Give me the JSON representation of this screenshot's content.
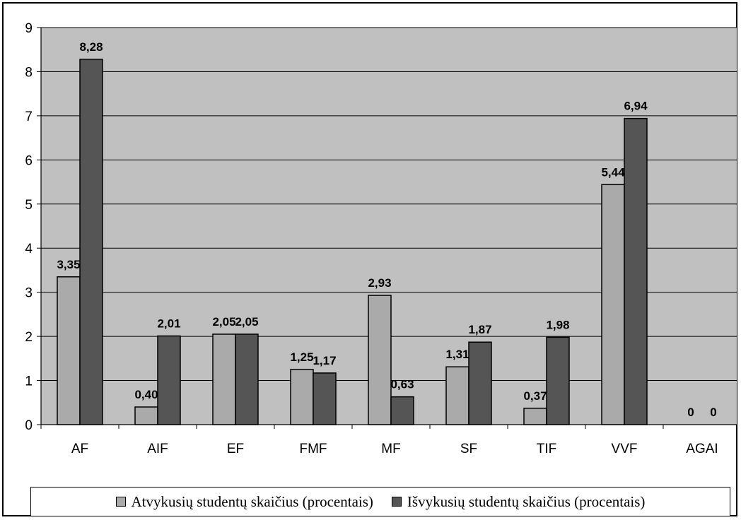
{
  "chart_data": {
    "type": "bar",
    "title": "",
    "xlabel": "",
    "ylabel": "",
    "ylim": [
      0,
      9
    ],
    "yticks": [
      0,
      1,
      2,
      3,
      4,
      5,
      6,
      7,
      8,
      9
    ],
    "grid": true,
    "legend_position": "bottom",
    "categories": [
      "AF",
      "AIF",
      "EF",
      "FMF",
      "MF",
      "SF",
      "TIF",
      "VVF",
      "AGAI"
    ],
    "series": [
      {
        "name": "Atvykusių studentų skaičius (procentais)",
        "color": "#aaaaaa",
        "values": [
          3.35,
          0.4,
          2.05,
          1.25,
          2.93,
          1.31,
          0.37,
          5.44,
          0
        ],
        "labels": [
          "3,35",
          "0,40",
          "2,05",
          "1,25",
          "2,93",
          "1,31",
          "0,37",
          "5,44",
          "0"
        ]
      },
      {
        "name": "Išvykusių studentų skaičius (procentais)",
        "color": "#555555",
        "values": [
          8.28,
          2.01,
          2.05,
          1.17,
          0.63,
          1.87,
          1.98,
          6.94,
          0
        ],
        "labels": [
          "8,28",
          "2,01",
          "2,05",
          "1,17",
          "0,63",
          "1,87",
          "1,98",
          "6,94",
          "0"
        ]
      }
    ],
    "plot_background": "#c0c0c0"
  }
}
